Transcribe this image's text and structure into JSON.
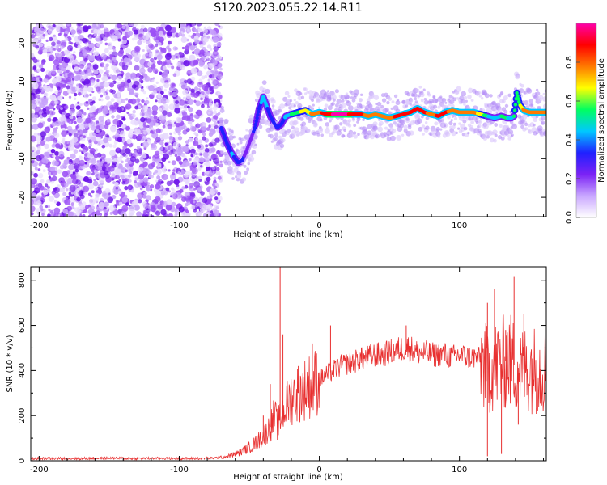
{
  "figure": {
    "title": "S120.2023.055.22.14.R11"
  },
  "chart_data": [
    {
      "type": "heatmap",
      "xlabel": "Height of straight line (km)",
      "ylabel": "Frequency (Hz)",
      "xlim": [
        -206,
        162
      ],
      "ylim": [
        -25,
        25
      ],
      "xticks": [
        -200,
        -100,
        0,
        100
      ],
      "yticks": [
        -20,
        -10,
        0,
        10,
        20
      ],
      "colorbar": {
        "label": "Normalized spectral amplitude",
        "range": [
          0,
          1
        ],
        "ticks": [
          "0.0",
          "0.2",
          "0.4",
          "0.6",
          "0.8"
        ],
        "colors": [
          "#ffffff",
          "#c9a7ff",
          "#7b22f5",
          "#2020ff",
          "#00c8ff",
          "#00ff60",
          "#ffff00",
          "#ff7a00",
          "#ff0000",
          "#ff00aa"
        ]
      },
      "noise_region_x": [
        -206,
        -70
      ],
      "ridge": {
        "x": [
          -70,
          -66,
          -62,
          -58,
          -55,
          -52,
          -49,
          -46,
          -43,
          -40,
          -38,
          -35,
          -32,
          -30,
          -27,
          -24,
          -20,
          -15,
          -10,
          -5,
          0,
          5,
          10,
          15,
          20,
          25,
          30,
          35,
          40,
          45,
          50,
          55,
          60,
          65,
          70,
          75,
          80,
          85,
          90,
          95,
          100,
          105,
          110,
          115,
          120,
          125,
          130,
          134,
          137,
          139,
          141,
          143,
          146,
          150,
          155,
          162
        ],
        "freq": [
          -2,
          -6,
          -9,
          -11,
          -10.5,
          -8,
          -5,
          -2,
          3,
          6,
          4,
          1,
          -1,
          -2,
          -1,
          1,
          1.5,
          2,
          2.5,
          1.5,
          2,
          1.5,
          1.5,
          1.5,
          1.5,
          1.5,
          1.5,
          1,
          1.5,
          1,
          0.5,
          1,
          1.5,
          2,
          3,
          2,
          1.5,
          1,
          2,
          2.5,
          2,
          2,
          2,
          1.5,
          1,
          0.5,
          1,
          0.5,
          0.5,
          1,
          7,
          4,
          2.5,
          2,
          2,
          2
        ],
        "amplitude": [
          0.3,
          0.35,
          0.4,
          0.35,
          0.3,
          0.25,
          0.25,
          0.3,
          0.35,
          0.45,
          0.4,
          0.35,
          0.3,
          0.3,
          0.35,
          0.4,
          0.5,
          0.6,
          0.65,
          0.75,
          0.8,
          0.9,
          0.95,
          0.95,
          0.95,
          0.9,
          0.85,
          0.8,
          0.8,
          0.75,
          0.8,
          0.85,
          0.85,
          0.9,
          0.9,
          0.85,
          0.8,
          0.85,
          0.85,
          0.8,
          0.8,
          0.8,
          0.75,
          0.7,
          0.5,
          0.45,
          0.5,
          0.5,
          0.45,
          0.5,
          0.55,
          0.6,
          0.75,
          0.8,
          0.8,
          0.8
        ]
      }
    },
    {
      "type": "line",
      "xlabel": "Height of straight line (km)",
      "ylabel": "SNR (10 * v/v)",
      "xlim": [
        -206,
        162
      ],
      "ylim": [
        0,
        860
      ],
      "xticks": [
        -200,
        -100,
        0,
        100
      ],
      "yticks": [
        0,
        200,
        400,
        600,
        800
      ],
      "color": "#e83030",
      "series": [
        {
          "x": [
            -206,
            -190,
            -170,
            -150,
            -130,
            -110,
            -90,
            -75,
            -65,
            -55,
            -50,
            -45,
            -40,
            -35,
            -32,
            -30,
            -28,
            -25,
            -22,
            -20,
            -15,
            -10,
            -5,
            0,
            5,
            10,
            15,
            20,
            25,
            30,
            35,
            40,
            45,
            50,
            55,
            60,
            65,
            70,
            75,
            80,
            85,
            90,
            95,
            100,
            105,
            110,
            115,
            120,
            125,
            130,
            135,
            140,
            145,
            150,
            155,
            162
          ],
          "y": [
            10,
            10,
            10,
            12,
            10,
            11,
            10,
            12,
            20,
            40,
            60,
            80,
            110,
            150,
            200,
            160,
            180,
            230,
            260,
            280,
            300,
            320,
            340,
            360,
            380,
            400,
            420,
            430,
            440,
            450,
            460,
            470,
            470,
            480,
            490,
            500,
            500,
            480,
            480,
            470,
            470,
            470,
            460,
            470,
            460,
            460,
            450,
            400,
            420,
            430,
            450,
            420,
            400,
            420,
            400,
            420
          ],
          "spikes": [
            {
              "x": -40,
              "y": 200
            },
            {
              "x": -35,
              "y": 340
            },
            {
              "x": -28,
              "y": 860
            },
            {
              "x": -26,
              "y": 560
            },
            {
              "x": -15,
              "y": 420
            },
            {
              "x": -5,
              "y": 520
            },
            {
              "x": 8,
              "y": 600
            },
            {
              "x": 30,
              "y": 500
            },
            {
              "x": 62,
              "y": 600
            },
            {
              "x": 120,
              "y": 700
            },
            {
              "x": 125,
              "y": 760
            },
            {
              "x": 133,
              "y": 580
            },
            {
              "x": 139,
              "y": 815
            },
            {
              "x": 146,
              "y": 650
            },
            {
              "x": 120,
              "y": 20
            },
            {
              "x": 130,
              "y": 30
            },
            {
              "x": 142,
              "y": 160
            },
            {
              "x": 158,
              "y": 280
            }
          ]
        }
      ]
    }
  ]
}
